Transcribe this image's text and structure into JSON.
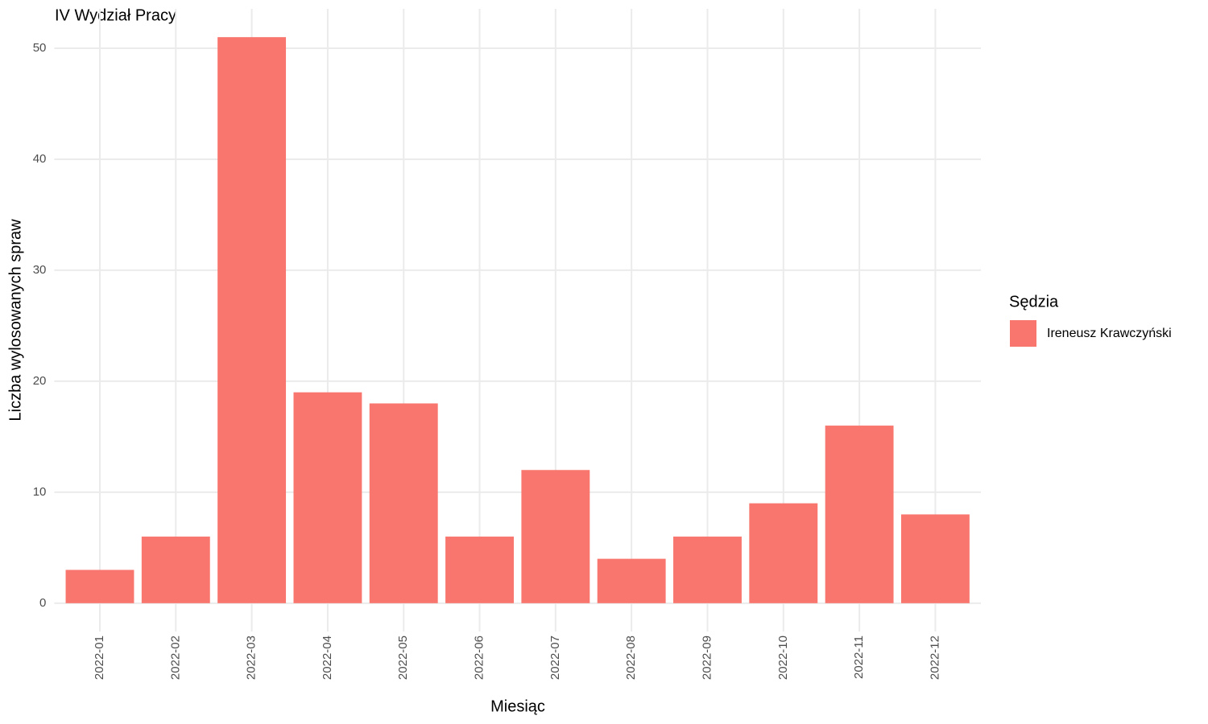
{
  "chart_data": {
    "type": "bar",
    "title": "IV Wydział Pracy",
    "x_label": "Miesiąc",
    "y_label": "Liczba wylosowanych spraw",
    "categories": [
      "2022-01",
      "2022-02",
      "2022-03",
      "2022-04",
      "2022-05",
      "2022-06",
      "2022-07",
      "2022-08",
      "2022-09",
      "2022-10",
      "2022-11",
      "2022-12"
    ],
    "legend_title": "Sędzia",
    "series": [
      {
        "name": "Ireneusz Krawczyński",
        "color": "#f8766d",
        "values": [
          3,
          6,
          51,
          19,
          18,
          6,
          12,
          4,
          6,
          9,
          16,
          8
        ]
      }
    ],
    "ylim": [
      -2.55,
      53.55
    ],
    "yticks": [
      0,
      10,
      20,
      30,
      40,
      50
    ],
    "grid": true,
    "legend_position": "right"
  }
}
